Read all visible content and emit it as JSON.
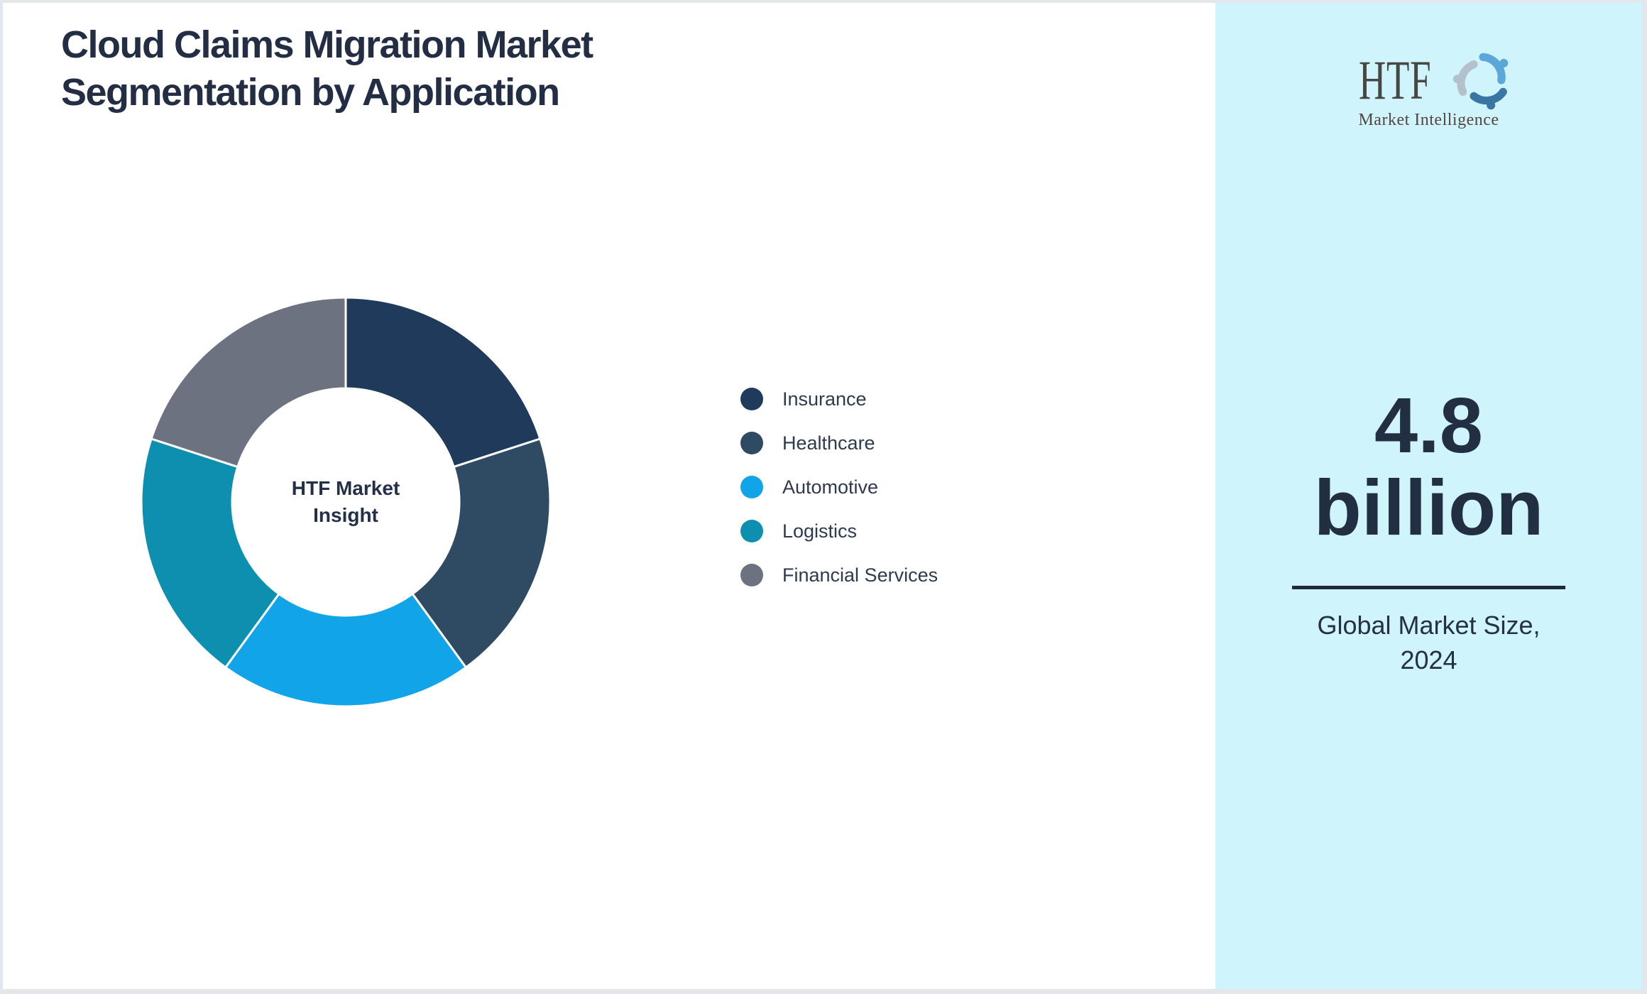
{
  "header": {
    "title_line1": "Cloud Claims Migration Market",
    "title_line2": "Segmentation by Application"
  },
  "chart_data": {
    "type": "pie",
    "style": "donut",
    "title": "Cloud Claims Migration Market Segmentation by Application",
    "center_label_line1": "HTF Market",
    "center_label_line2": "Insight",
    "legend_position": "right",
    "start_angle_deg": 0,
    "direction": "clockwise",
    "values_unit": "percent (estimated from arc angles, no labels shown)",
    "items": [
      {
        "label": "Insurance",
        "value": 20,
        "color": "#203A5C"
      },
      {
        "label": "Healthcare",
        "value": 20,
        "color": "#2F4A63"
      },
      {
        "label": "Automotive",
        "value": 20,
        "color": "#12A4E9"
      },
      {
        "label": "Logistics",
        "value": 20,
        "color": "#0D90B0"
      },
      {
        "label": "Financial Services",
        "value": 20,
        "color": "#6C727F"
      }
    ]
  },
  "sidebar": {
    "background_color": "#CFF4FB",
    "logo": {
      "text": "HTF",
      "subtext": "Market Intelligence",
      "dolphin_color_1": "#5BA7D9",
      "dolphin_color_2": "#B4C0CA",
      "dolphin_color_3": "#3A76A3"
    },
    "metric_line1": "4.8",
    "metric_line2": "billion",
    "caption_line1": "Global Market Size,",
    "caption_line2": "2024"
  },
  "colors": {
    "title_text": "#232E44",
    "legend_text": "#2E3A4E",
    "divider": "#1F2B3C",
    "frame_border": "#E3E6EB",
    "donut_stroke": "#FFFFFF"
  }
}
